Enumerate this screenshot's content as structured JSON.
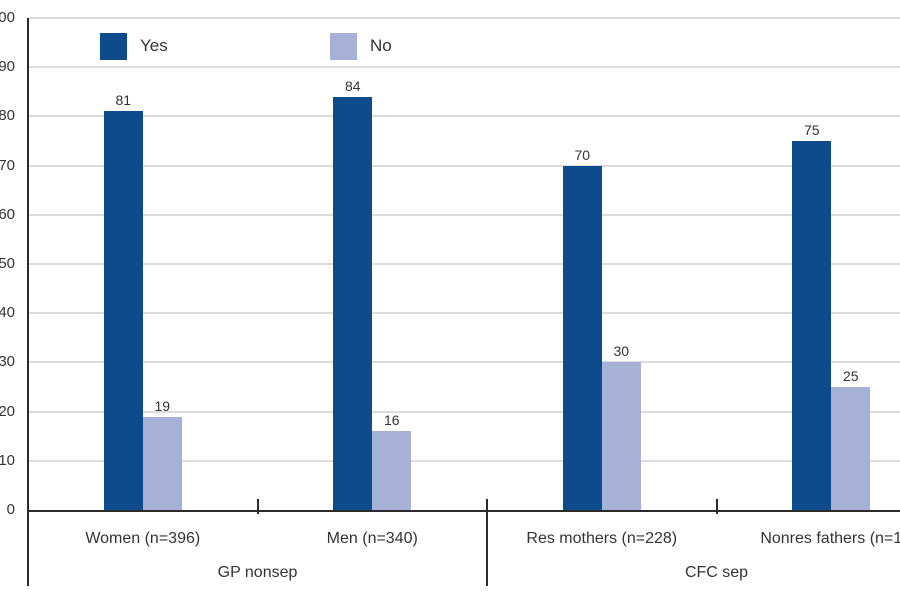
{
  "colors": {
    "background": "#FFFFFF",
    "gridline": "#DCDCDC",
    "axis": "#2B2B2B",
    "text": "#333333"
  },
  "chart_data": {
    "type": "bar",
    "title": "",
    "xlabel": "",
    "ylabel": "",
    "ylim": [
      0,
      100
    ],
    "ytick_step": 10,
    "grid": true,
    "legend_position": "top-left-inside",
    "value_labels": true,
    "categories": [
      "Women (n=396)",
      "Men (n=340)",
      "Res mothers (n=228)",
      "Nonres fathers (n=1"
    ],
    "group_labels": [
      {
        "label": "GP nonsep",
        "span": [
          0,
          1
        ]
      },
      {
        "label": "CFC sep",
        "span": [
          2,
          3
        ]
      }
    ],
    "series": [
      {
        "name": "Yes",
        "color": "#0D4B8C",
        "values": [
          81,
          84,
          70,
          75
        ]
      },
      {
        "name": "No",
        "color": "#A6B1D5",
        "values": [
          19,
          16,
          30,
          25
        ]
      }
    ]
  }
}
